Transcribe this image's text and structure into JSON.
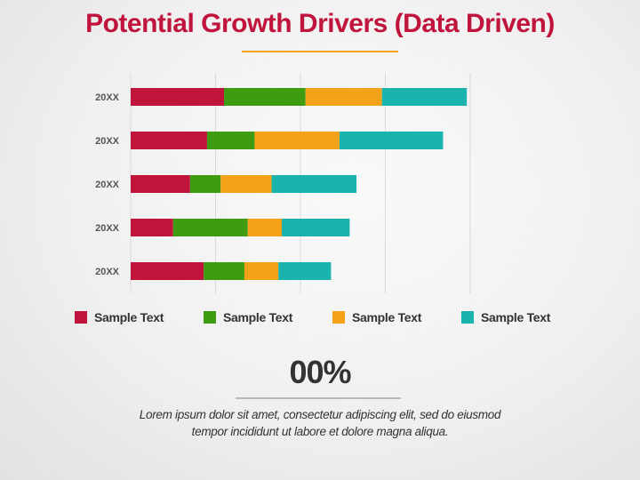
{
  "slide": {
    "title": "Potential Growth Drivers (Data Driven)",
    "stat_value": "00%",
    "description_line1": "Lorem ipsum dolor sit amet, consectetur adipiscing elit, sed do eiusmod",
    "description_line2": "tempor incididunt ut labore et dolore magna aliqua."
  },
  "colors": {
    "title": "#c0143c",
    "accent_line": "#f0a21b",
    "text": "#333333"
  },
  "chart_data": {
    "type": "bar",
    "orientation": "horizontal",
    "stacked": true,
    "categories": [
      "20XX",
      "20XX",
      "20XX",
      "20XX",
      "20XX"
    ],
    "series": [
      {
        "name": "Sample Text",
        "color": "#c0143c",
        "values": [
          5.5,
          4.5,
          3.5,
          2.5,
          4.3
        ]
      },
      {
        "name": "Sample Text",
        "color": "#3e9b12",
        "values": [
          4.8,
          2.8,
          1.8,
          4.4,
          2.4
        ]
      },
      {
        "name": "Sample Text",
        "color": "#f5a21b",
        "values": [
          4.5,
          5.0,
          3.0,
          2.0,
          2.0
        ]
      },
      {
        "name": "Sample Text",
        "color": "#1ab3ad",
        "values": [
          5.0,
          6.1,
          5.0,
          4.0,
          3.1
        ]
      }
    ],
    "xlim": [
      0,
      20
    ],
    "x_gridlines": [
      0,
      5,
      10,
      15,
      20
    ],
    "grid": true,
    "legend_position": "bottom"
  }
}
